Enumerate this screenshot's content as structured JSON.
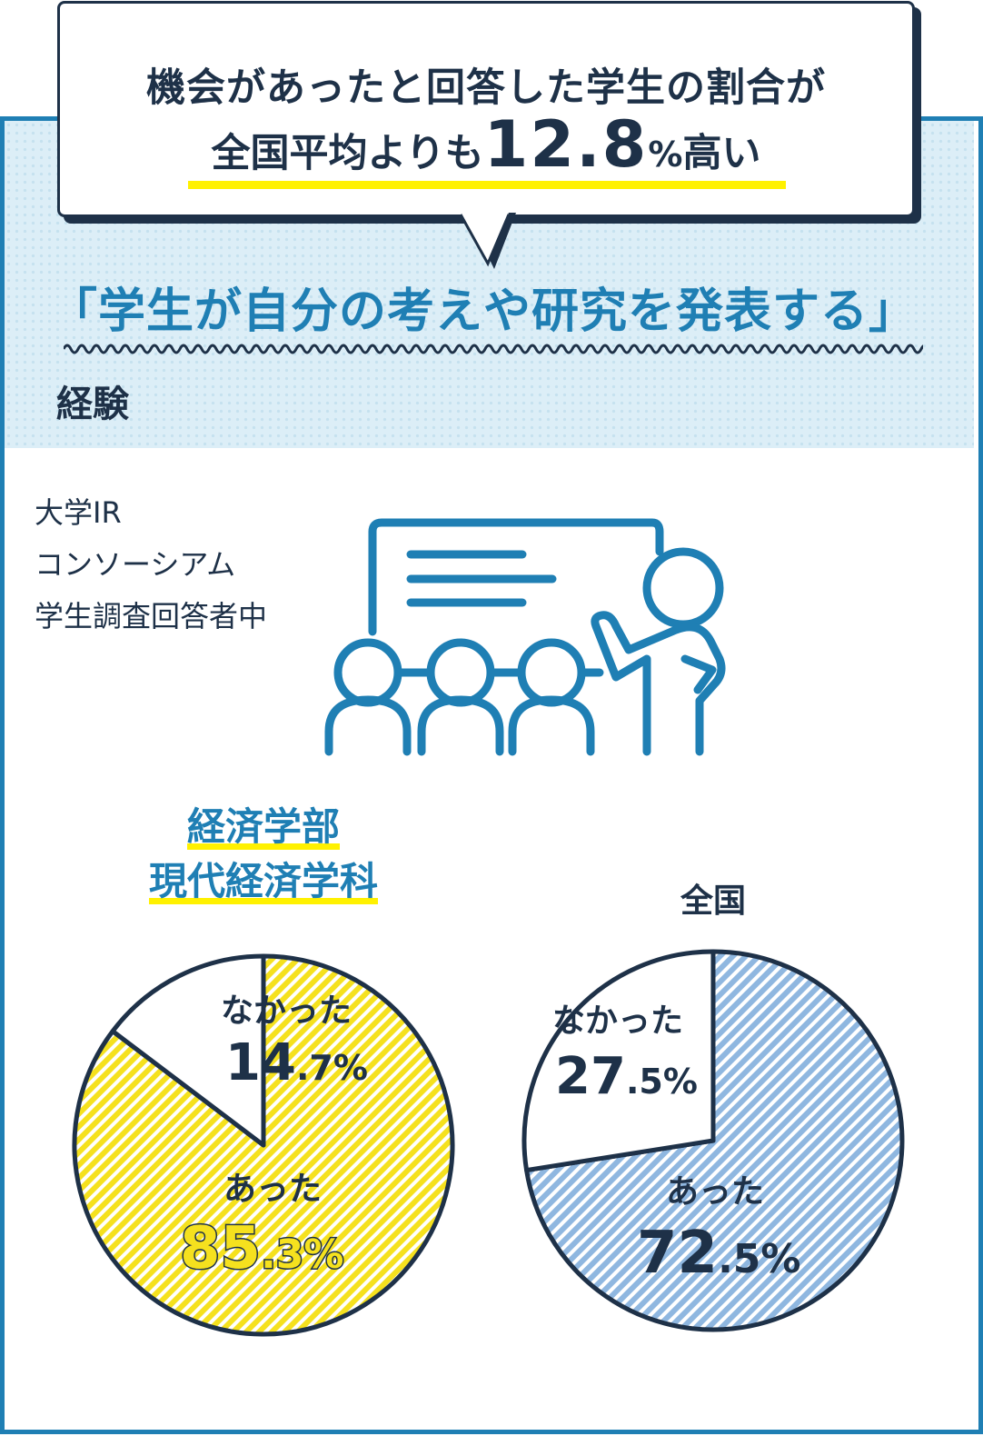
{
  "callout": {
    "line1": "機会があったと回答した学生の割合が",
    "line2_prefix": "全国平均よりも",
    "line2_value": "12.8",
    "line2_unit": "%",
    "line2_suffix": "高い"
  },
  "topic": {
    "title": "「学生が自分の考えや研究を発表する」",
    "subtitle": "経験"
  },
  "source_note": "大学IR\nコンソーシアム\n学生調査回答者中",
  "illustration_icon": "presentation-icon",
  "colors": {
    "frame": "#1f7fb4",
    "navy": "#1e3148",
    "accent_yellow": "#fff100",
    "faculty_fill": "#f5e11e",
    "national_fill": "#8fb7e0"
  },
  "chart_data": [
    {
      "type": "pie",
      "title_line1": "経済学部",
      "title_line2": "現代経済学科",
      "slices": [
        {
          "label": "あった",
          "value_int": "85",
          "value_dec": ".3",
          "unit": "%",
          "value": 85.3
        },
        {
          "label": "なかった",
          "value_int": "14",
          "value_dec": ".7",
          "unit": "%",
          "value": 14.7
        }
      ]
    },
    {
      "type": "pie",
      "title": "全国",
      "slices": [
        {
          "label": "あった",
          "value_int": "72",
          "value_dec": ".5",
          "unit": "%",
          "value": 72.5
        },
        {
          "label": "なかった",
          "value_int": "27",
          "value_dec": ".5",
          "unit": "%",
          "value": 27.5
        }
      ]
    }
  ]
}
